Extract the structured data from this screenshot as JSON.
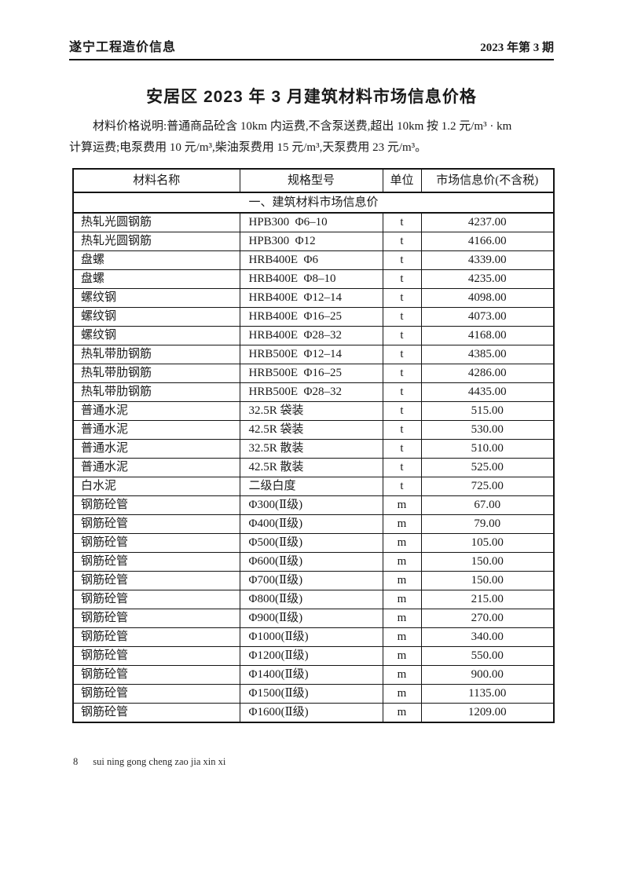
{
  "masthead": {
    "journal": "遂宁工程造价信息",
    "issue": "2023 年第 3 期"
  },
  "title": "安居区 2023 年 3 月建筑材料市场信息价格",
  "description": {
    "line1": "材料价格说明:普通商品砼含 10km 内运费,不含泵送费,超出 10km 按 1.2 元/m³ · km",
    "line2": "计算运费;电泵费用 10 元/m³,柴油泵费用 15 元/m³,天泵费用 23 元/m³。"
  },
  "table": {
    "headers": [
      "材料名称",
      "规格型号",
      "单位",
      "市场信息价(不含税)"
    ],
    "section_title": "一、建筑材料市场信息价",
    "rows": [
      [
        "热轧光圆钢筋",
        "HPB300  Φ6–10",
        "t",
        "4237.00"
      ],
      [
        "热轧光圆钢筋",
        "HPB300  Φ12",
        "t",
        "4166.00"
      ],
      [
        "盘螺",
        "HRB400E  Φ6",
        "t",
        "4339.00"
      ],
      [
        "盘螺",
        "HRB400E  Φ8–10",
        "t",
        "4235.00"
      ],
      [
        "螺纹钢",
        "HRB400E  Φ12–14",
        "t",
        "4098.00"
      ],
      [
        "螺纹钢",
        "HRB400E  Φ16–25",
        "t",
        "4073.00"
      ],
      [
        "螺纹钢",
        "HRB400E  Φ28–32",
        "t",
        "4168.00"
      ],
      [
        "热轧带肋钢筋",
        "HRB500E  Φ12–14",
        "t",
        "4385.00"
      ],
      [
        "热轧带肋钢筋",
        "HRB500E  Φ16–25",
        "t",
        "4286.00"
      ],
      [
        "热轧带肋钢筋",
        "HRB500E  Φ28–32",
        "t",
        "4435.00"
      ],
      [
        "普通水泥",
        "32.5R 袋装",
        "t",
        "515.00"
      ],
      [
        "普通水泥",
        "42.5R 袋装",
        "t",
        "530.00"
      ],
      [
        "普通水泥",
        "32.5R 散装",
        "t",
        "510.00"
      ],
      [
        "普通水泥",
        "42.5R 散装",
        "t",
        "525.00"
      ],
      [
        "白水泥",
        "二级白度",
        "t",
        "725.00"
      ],
      [
        "钢筋砼管",
        "Φ300(Ⅱ级)",
        "m",
        "67.00"
      ],
      [
        "钢筋砼管",
        "Φ400(Ⅱ级)",
        "m",
        "79.00"
      ],
      [
        "钢筋砼管",
        "Φ500(Ⅱ级)",
        "m",
        "105.00"
      ],
      [
        "钢筋砼管",
        "Φ600(Ⅱ级)",
        "m",
        "150.00"
      ],
      [
        "钢筋砼管",
        "Φ700(Ⅱ级)",
        "m",
        "150.00"
      ],
      [
        "钢筋砼管",
        "Φ800(Ⅱ级)",
        "m",
        "215.00"
      ],
      [
        "钢筋砼管",
        "Φ900(Ⅱ级)",
        "m",
        "270.00"
      ],
      [
        "钢筋砼管",
        "Φ1000(Ⅱ级)",
        "m",
        "340.00"
      ],
      [
        "钢筋砼管",
        "Φ1200(Ⅱ级)",
        "m",
        "550.00"
      ],
      [
        "钢筋砼管",
        "Φ1400(Ⅱ级)",
        "m",
        "900.00"
      ],
      [
        "钢筋砼管",
        "Φ1500(Ⅱ级)",
        "m",
        "1135.00"
      ],
      [
        "钢筋砼管",
        "Φ1600(Ⅱ级)",
        "m",
        "1209.00"
      ]
    ]
  },
  "footer": {
    "page_number": "8",
    "text": "sui ning gong cheng zao jia xin xi"
  },
  "colors": {
    "ink": "#1a1a1a",
    "paper": "#ffffff"
  }
}
